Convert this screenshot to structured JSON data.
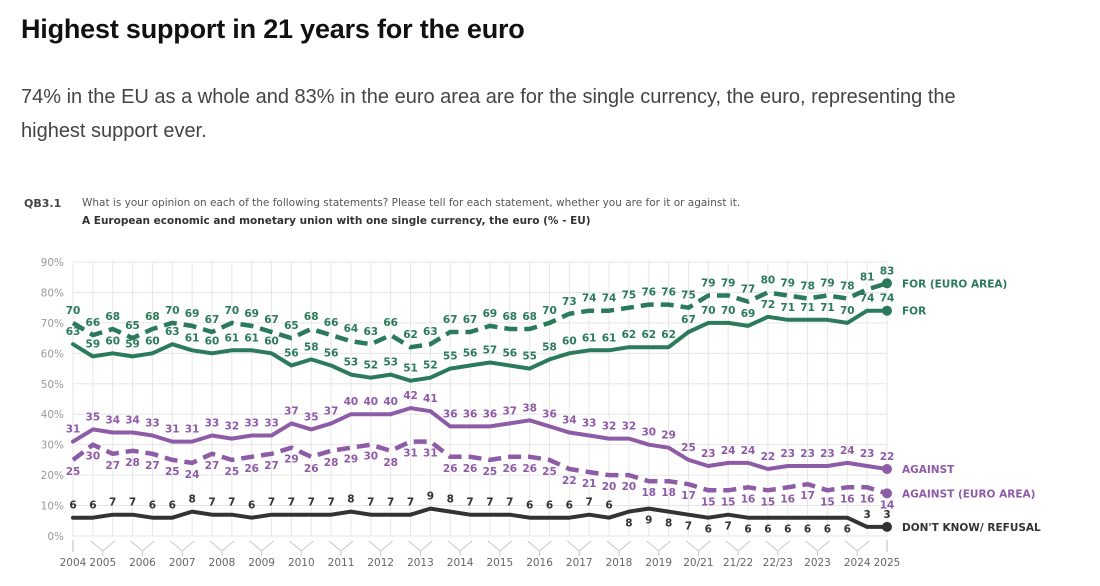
{
  "page": {
    "headline": "Highest support in 21 years for the euro",
    "lede": "74% in the EU as a whole and 83% in the euro area are for the single currency, the euro, representing the highest support ever."
  },
  "chart_header": {
    "code": "QB3.1",
    "question": "What is your opinion on each of the following statements? Please tell for each statement, whether you are for it or against it.",
    "subtitle": "A European economic and monetary union with one single currency, the euro (% - EU)"
  },
  "chart_data": {
    "type": "line",
    "title": "A European economic and monetary union with one single currency, the euro (% - EU)",
    "xlabel": "",
    "ylabel": "",
    "ylim": [
      0,
      90
    ],
    "yticks": [
      "0%",
      "10%",
      "20%",
      "30%",
      "40%",
      "50%",
      "60%",
      "70%",
      "80%",
      "90%"
    ],
    "grid": true,
    "legend_placement": "right (end of lines)",
    "n_points": 42,
    "x_tick_labels": [
      {
        "label": "2004",
        "point": 0
      },
      {
        "label": "2005",
        "point": 1.5
      },
      {
        "label": "2006",
        "point": 3.5
      },
      {
        "label": "2007",
        "point": 5.5
      },
      {
        "label": "2008",
        "point": 7.5
      },
      {
        "label": "2009",
        "point": 9.5
      },
      {
        "label": "2010",
        "point": 11.5
      },
      {
        "label": "2011",
        "point": 13.5
      },
      {
        "label": "2012",
        "point": 15.5
      },
      {
        "label": "2013",
        "point": 17.5
      },
      {
        "label": "2014",
        "point": 19.5
      },
      {
        "label": "2015",
        "point": 21.5
      },
      {
        "label": "2016",
        "point": 23.5
      },
      {
        "label": "2017",
        "point": 25.5
      },
      {
        "label": "2018",
        "point": 27.5
      },
      {
        "label": "2019",
        "point": 29.5
      },
      {
        "label": "20/21",
        "point": 31.5
      },
      {
        "label": "21/22",
        "point": 33.5
      },
      {
        "label": "22/23",
        "point": 35.5
      },
      {
        "label": "2023",
        "point": 37.5
      },
      {
        "label": "2024",
        "point": 39.5
      },
      {
        "label": "2025",
        "point": 41
      }
    ],
    "series": [
      {
        "name": "FOR (EURO AREA)",
        "color": "#2b7a5b",
        "dashed": true,
        "label_position": "above",
        "values": [
          70,
          66,
          68,
          65,
          68,
          70,
          69,
          67,
          70,
          69,
          67,
          65,
          68,
          66,
          64,
          63,
          66,
          62,
          63,
          67,
          67,
          69,
          68,
          68,
          70,
          73,
          74,
          74,
          75,
          76,
          76,
          75,
          79,
          79,
          77,
          80,
          79,
          78,
          79,
          78,
          81,
          83
        ]
      },
      {
        "name": "FOR",
        "color": "#2b7a5b",
        "dashed": false,
        "label_position": "above",
        "values": [
          63,
          59,
          60,
          59,
          60,
          63,
          61,
          60,
          61,
          61,
          60,
          56,
          58,
          56,
          53,
          52,
          53,
          51,
          52,
          55,
          56,
          57,
          56,
          55,
          58,
          60,
          61,
          61,
          62,
          62,
          62,
          67,
          70,
          70,
          69,
          72,
          71,
          71,
          71,
          70,
          74,
          74
        ]
      },
      {
        "name": "AGAINST",
        "color": "#8e5ba6",
        "dashed": false,
        "label_position": "above",
        "values": [
          31,
          35,
          34,
          34,
          33,
          31,
          31,
          33,
          32,
          33,
          33,
          37,
          35,
          37,
          40,
          40,
          40,
          42,
          41,
          36,
          36,
          36,
          37,
          38,
          36,
          34,
          33,
          32,
          32,
          30,
          29,
          25,
          23,
          24,
          24,
          22,
          23,
          23,
          23,
          24,
          23,
          22
        ]
      },
      {
        "name": "AGAINST (EURO AREA)",
        "color": "#8e5ba6",
        "dashed": true,
        "label_position": "below",
        "values": [
          25,
          30,
          27,
          28,
          27,
          25,
          24,
          27,
          25,
          26,
          27,
          29,
          26,
          28,
          29,
          30,
          28,
          31,
          31,
          26,
          26,
          25,
          26,
          26,
          25,
          22,
          21,
          20,
          20,
          18,
          18,
          17,
          15,
          15,
          16,
          15,
          16,
          17,
          15,
          16,
          16,
          14
        ]
      },
      {
        "name": "DON'T KNOW/ REFUSAL",
        "color": "#333333",
        "dashed": false,
        "label_position": "mixed",
        "values": [
          6,
          6,
          7,
          7,
          6,
          6,
          8,
          7,
          7,
          6,
          7,
          7,
          7,
          7,
          8,
          7,
          7,
          7,
          9,
          8,
          7,
          7,
          7,
          6,
          6,
          6,
          7,
          6,
          8,
          9,
          8,
          7,
          6,
          7,
          6,
          6,
          6,
          6,
          6,
          6,
          3,
          3
        ]
      }
    ]
  }
}
